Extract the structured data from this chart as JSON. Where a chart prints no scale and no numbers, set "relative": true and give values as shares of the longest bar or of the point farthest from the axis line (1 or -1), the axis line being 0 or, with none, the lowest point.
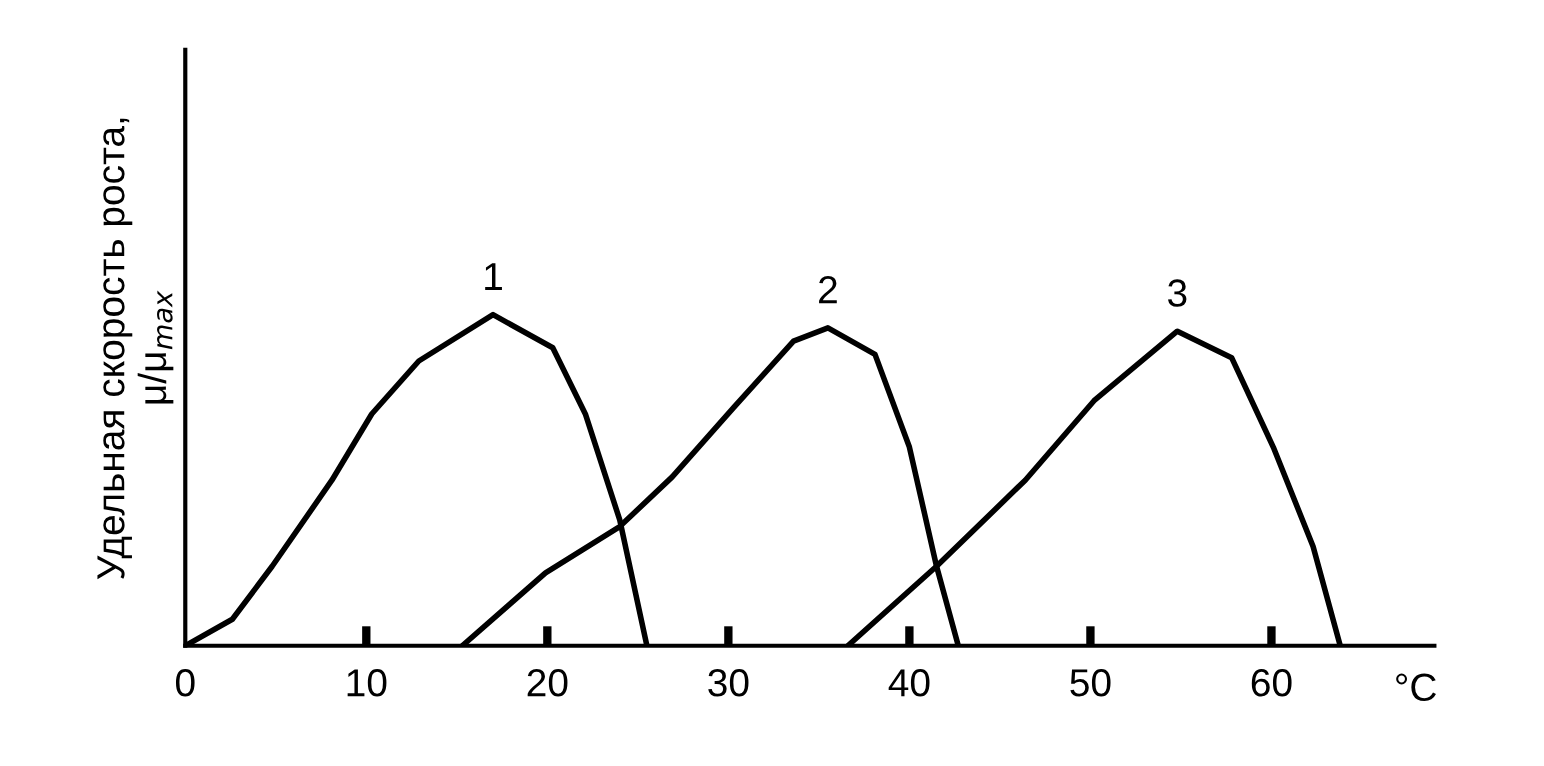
{
  "chart_data": {
    "type": "line",
    "relative": true,
    "xlabel": "°C",
    "ylabel": "Удельная скорость роста,\nμ/μ$_{max}$",
    "xlim": [
      0,
      69
    ],
    "xticks": [
      0,
      10,
      20,
      30,
      40,
      50,
      60
    ],
    "grid": false,
    "legend": false,
    "marker": "none",
    "line_style": "solid",
    "series": [
      {
        "name": "1",
        "color": "#000000",
        "x": [
          0,
          2.6,
          4.8,
          8.1,
          10.3,
          12.9,
          17.0,
          20.3,
          22.1,
          24.0,
          25.5
        ],
        "values": [
          0,
          0.08,
          0.24,
          0.5,
          0.7,
          0.86,
          1.0,
          0.9,
          0.7,
          0.38,
          0
        ]
      },
      {
        "name": "2",
        "color": "#000000",
        "x": [
          15.3,
          19.9,
          24.0,
          26.9,
          30.3,
          33.6,
          35.5,
          38.1,
          40.0,
          41.5,
          42.7
        ],
        "values": [
          0,
          0.22,
          0.36,
          0.51,
          0.72,
          0.92,
          0.96,
          0.88,
          0.6,
          0.24,
          0
        ]
      },
      {
        "name": "3",
        "color": "#000000",
        "x": [
          36.6,
          41.5,
          46.4,
          50.2,
          54.8,
          57.8,
          60.1,
          62.3,
          63.8
        ],
        "values": [
          0,
          0.24,
          0.5,
          0.74,
          0.95,
          0.87,
          0.6,
          0.3,
          0
        ]
      }
    ]
  }
}
